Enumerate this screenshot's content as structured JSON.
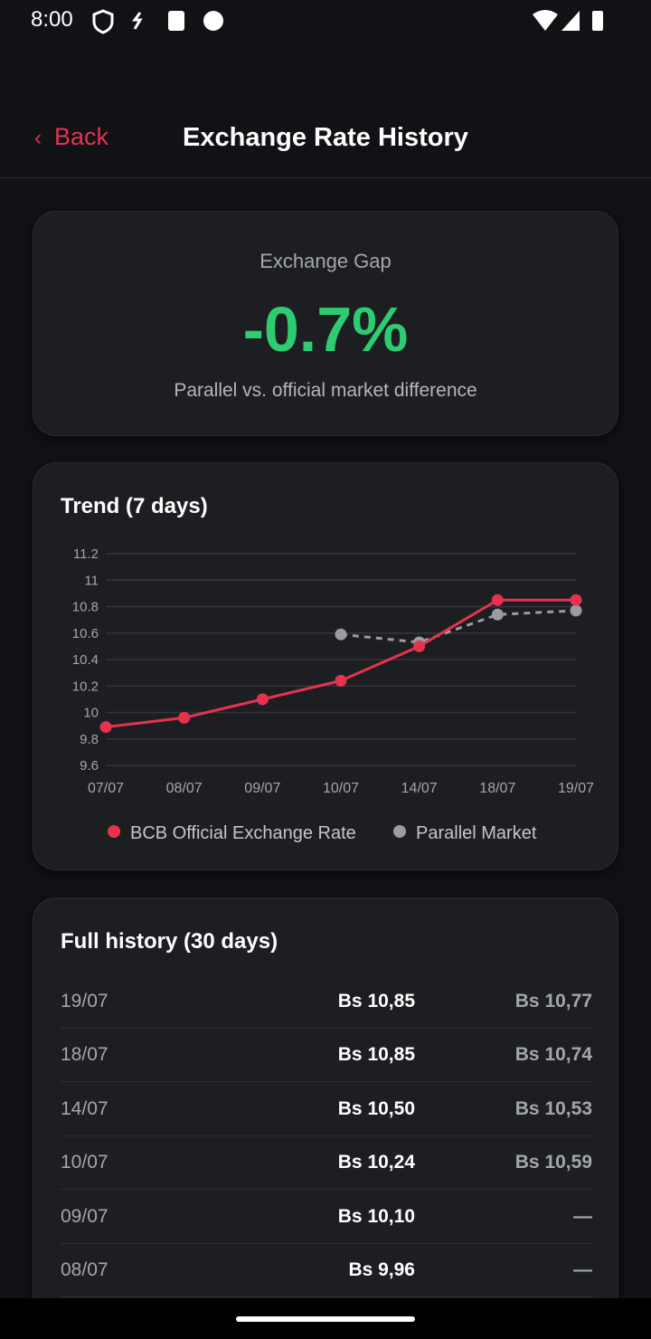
{
  "status_bar": {
    "time": "8:00"
  },
  "header": {
    "back": "Back",
    "title": "Exchange Rate History"
  },
  "gap_card": {
    "label": "Exchange Gap",
    "value": "-0.7%",
    "caption": "Parallel vs. official market difference"
  },
  "trend": {
    "title": "Trend (7 days)",
    "chart_data": {
      "type": "line",
      "categories": [
        "07/07",
        "08/07",
        "09/07",
        "10/07",
        "14/07",
        "18/07",
        "19/07"
      ],
      "series": [
        {
          "name": "BCB Official Exchange Rate",
          "color": "#e5334f",
          "line_style": "solid",
          "values": [
            9.89,
            9.96,
            10.1,
            10.24,
            10.5,
            10.85,
            10.85
          ]
        },
        {
          "name": "Parallel Market",
          "color": "#9a9ca1",
          "line_style": "dashed",
          "values": [
            null,
            null,
            null,
            10.59,
            10.53,
            10.74,
            10.77
          ]
        }
      ],
      "ylim": [
        9.6,
        11.2
      ],
      "yticks": [
        9.6,
        9.8,
        10,
        10.2,
        10.4,
        10.6,
        10.8,
        11,
        11.2
      ],
      "grid": true
    }
  },
  "history": {
    "title": "Full history (30 days)",
    "rows": [
      [
        "19/07",
        "Bs 10,85",
        "Bs 10,77"
      ],
      [
        "18/07",
        "Bs 10,85",
        "Bs 10,74"
      ],
      [
        "14/07",
        "Bs 10,50",
        "Bs 10,53"
      ],
      [
        "10/07",
        "Bs 10,24",
        "Bs 10,59"
      ],
      [
        "09/07",
        "Bs 10,10",
        "—"
      ],
      [
        "08/07",
        "Bs 9,96",
        "—"
      ]
    ]
  }
}
